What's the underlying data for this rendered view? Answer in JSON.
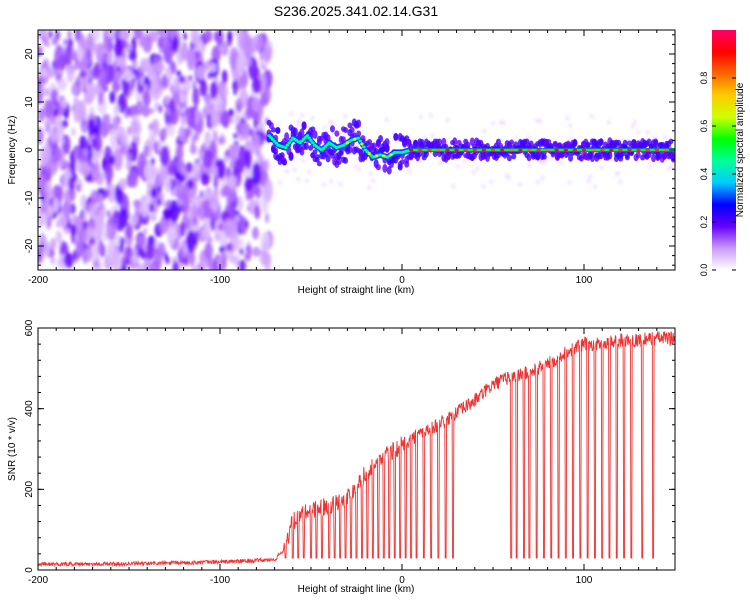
{
  "figure_title": "S236.2025.341.02.14.G31",
  "chart_data": [
    {
      "type": "heatmap",
      "title": "S236.2025.341.02.14.G31",
      "xlabel": "Height of straight line (km)",
      "ylabel": "Frequency (Hz)",
      "xlim": [
        -200,
        150
      ],
      "ylim": [
        -25,
        25
      ],
      "xticks": [
        -200,
        -100,
        0,
        100
      ],
      "yticks": [
        -20,
        -10,
        0,
        10,
        20
      ],
      "colorbar": {
        "label": "Normalized spectral amplitude",
        "range": [
          0.0,
          1.0
        ],
        "ticks": [
          0.0,
          0.2,
          0.4,
          0.6,
          0.8
        ],
        "tick_labels": [
          "0.0",
          "0.2",
          "0.4",
          "0.6",
          "0.8"
        ],
        "colors": [
          "#ffffff",
          "#cc99ff",
          "#6600ff",
          "#0000ff",
          "#00ccff",
          "#00ff99",
          "#00ff00",
          "#ccff00",
          "#ffcc00",
          "#ff6600",
          "#ff0000",
          "#ff0066"
        ]
      },
      "noise_region_x": [
        -200,
        -73
      ],
      "signal_ridge": {
        "x": [
          -73,
          -68,
          -64,
          -60,
          -56,
          -52,
          -48,
          -44,
          -40,
          -36,
          -32,
          -28,
          -24,
          -20,
          -16,
          -12,
          -8,
          -4,
          0,
          5,
          10,
          20,
          40,
          60,
          80,
          100,
          120,
          150
        ],
        "y": [
          3.0,
          1.0,
          0.5,
          2.5,
          1.5,
          3.0,
          1.0,
          0.0,
          1.5,
          0.5,
          1.0,
          2.0,
          2.5,
          0.0,
          -1.5,
          -1.0,
          -1.5,
          -0.5,
          -0.5,
          0.0,
          0.0,
          0.0,
          0.0,
          0.0,
          0.0,
          0.0,
          0.0,
          0.0
        ]
      }
    },
    {
      "type": "line",
      "xlabel": "Height of straight line (km)",
      "ylabel": "SNR (10 * v/v)",
      "xlim": [
        -200,
        150
      ],
      "ylim": [
        0,
        600
      ],
      "xticks": [
        -200,
        -100,
        0,
        100
      ],
      "yticks": [
        0,
        200,
        400,
        600
      ],
      "series": [
        {
          "name": "SNR",
          "color": "#ee3333",
          "trend_x": [
            -200,
            -150,
            -100,
            -70,
            -65,
            -60,
            -50,
            -40,
            -30,
            -20,
            -10,
            0,
            10,
            20,
            30,
            40,
            50,
            60,
            70,
            80,
            90,
            100,
            110,
            120,
            130,
            140,
            150
          ],
          "trend_y": [
            15,
            15,
            20,
            25,
            50,
            120,
            150,
            160,
            180,
            240,
            280,
            310,
            340,
            360,
            390,
            420,
            460,
            480,
            490,
            510,
            540,
            560,
            560,
            570,
            570,
            575,
            575
          ],
          "dropout_x": [
            -64,
            -60,
            -57,
            -54,
            -50,
            -47,
            -44,
            -40,
            -37,
            -34,
            -31,
            -28,
            -25,
            -22,
            -19,
            -16,
            -13,
            -10,
            -7,
            -4,
            -1,
            2,
            5,
            8,
            12,
            16,
            20,
            24,
            28,
            60,
            63,
            67,
            70,
            74,
            78,
            82,
            86,
            90,
            94,
            98,
            102,
            106,
            110,
            114,
            118,
            122,
            126,
            132,
            138
          ],
          "dropout_y": [
            30,
            30,
            30,
            30,
            30,
            30,
            30,
            30,
            30,
            30,
            30,
            30,
            30,
            30,
            30,
            30,
            30,
            30,
            30,
            30,
            30,
            30,
            30,
            30,
            30,
            30,
            30,
            30,
            30,
            30,
            30,
            30,
            30,
            30,
            30,
            30,
            30,
            30,
            30,
            30,
            30,
            30,
            30,
            30,
            30,
            30,
            30,
            30,
            30
          ]
        }
      ]
    }
  ]
}
